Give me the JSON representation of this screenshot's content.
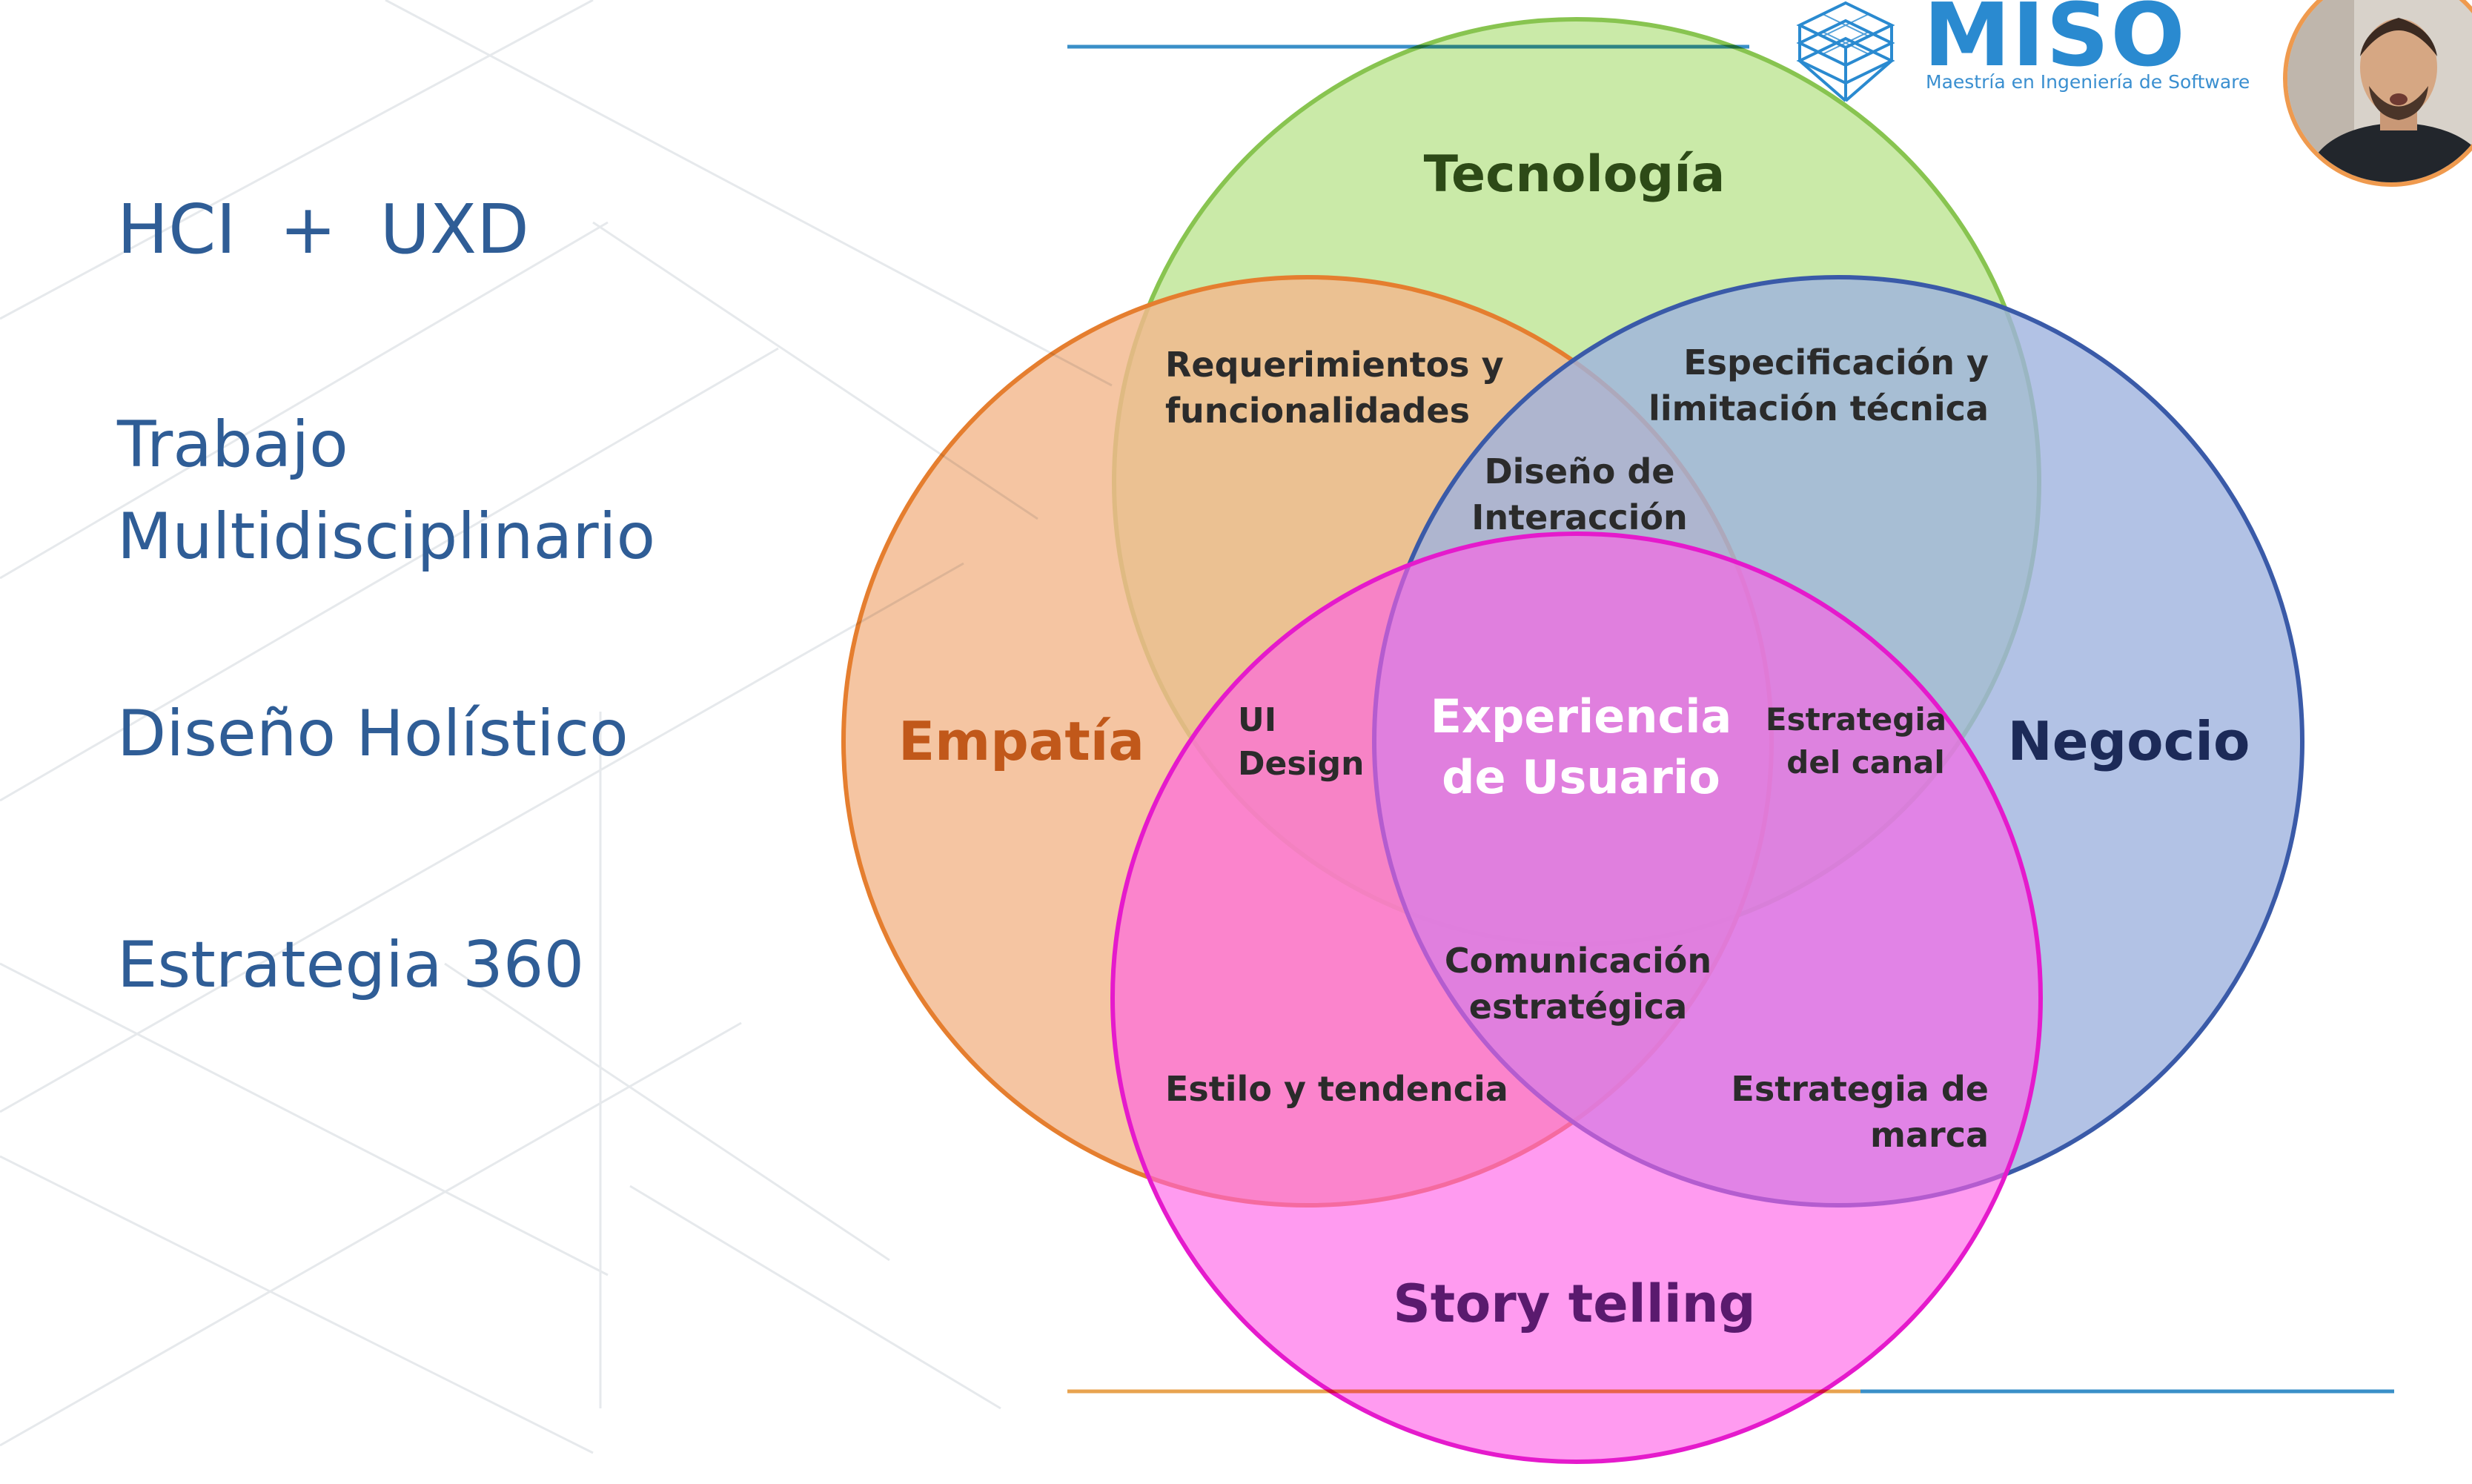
{
  "left_panel": {
    "items": [
      "HCI  +  UXD",
      "Trabajo",
      "Multidisciplinario",
      "Diseño Holístico",
      "Estrategia 360"
    ]
  },
  "logo": {
    "title": "MISO",
    "subtitle": "Maestría en Ingeniería de Software",
    "icon": "stacked-cube-icon",
    "color": "#2a8ad0"
  },
  "webcam": {
    "icon": "presenter-avatar"
  },
  "venn": {
    "sets": {
      "tecnologia": {
        "label": "Tecnología",
        "fill": "#c5e8a1",
        "stroke": "#88c450",
        "text_color": "#2d4a17"
      },
      "empatia": {
        "label": "Empatía",
        "fill": "#f3b88e",
        "stroke": "#e57e2f",
        "text_color": "#c1581a"
      },
      "negocio": {
        "label": "Negocio",
        "fill": "#9fb3de",
        "stroke": "#3a5aa8",
        "text_color": "#1c2a58"
      },
      "story": {
        "label": "Story telling",
        "fill": "#ff5de6",
        "stroke": "#e51acc",
        "text_color": "#5a1a6e"
      }
    },
    "intersections": {
      "requerimientos": [
        "Requerimientos y",
        "funcionalidades"
      ],
      "especificacion": [
        "Especificación y",
        "limitación técnica"
      ],
      "interaccion": [
        "Diseño de",
        "Interacción"
      ],
      "ui_design": [
        "UI",
        "Design"
      ],
      "experiencia": [
        "Experiencia",
        "de Usuario"
      ],
      "estrategia_canal": [
        "Estrategia",
        "del canal"
      ],
      "comunicacion": [
        "Comunicación",
        "estratégica"
      ],
      "estilo": [
        "Estilo y tendencia"
      ],
      "estrategia_marca": [
        "Estrategia de",
        "marca"
      ]
    }
  }
}
